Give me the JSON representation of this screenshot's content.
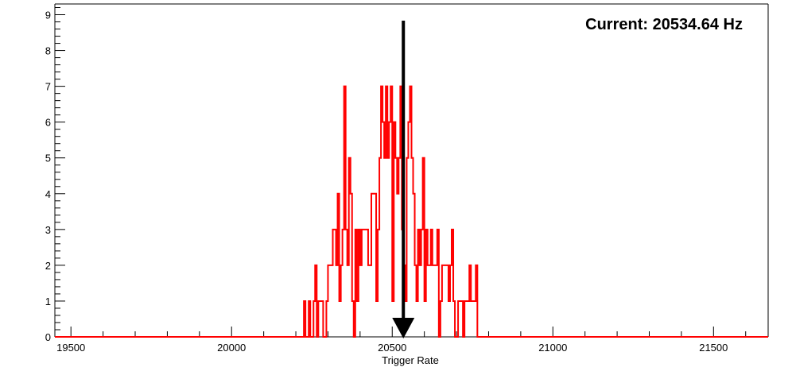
{
  "chart_data": {
    "type": "histogram",
    "title": "",
    "annotation": {
      "label": "Current: 20534.64 Hz",
      "marker_x": 20534.64
    },
    "xlabel": "Trigger Rate",
    "ylabel": "",
    "xlim": [
      19450,
      21670
    ],
    "ylim": [
      0,
      9.3
    ],
    "x_ticks": [
      19500,
      20000,
      20500,
      21000,
      21500
    ],
    "y_ticks": [
      0,
      1,
      2,
      3,
      4,
      5,
      6,
      7,
      8,
      9
    ],
    "grid": false,
    "line_color": "#ff0000",
    "arrow_color": "#000000",
    "bin_width": 5,
    "bins_start": 20225,
    "counts": [
      1,
      0,
      0,
      1,
      0,
      0,
      1,
      2,
      0,
      1,
      1,
      1,
      0,
      0,
      1,
      2,
      2,
      2,
      3,
      3,
      2,
      4,
      1,
      2,
      3,
      7,
      3,
      2,
      5,
      4,
      1,
      0,
      3,
      1,
      3,
      2,
      3,
      3,
      3,
      3,
      2,
      2,
      4,
      4,
      4,
      1,
      3,
      5,
      7,
      6,
      5,
      7,
      5,
      6,
      7,
      1,
      6,
      5,
      4,
      5,
      7,
      3,
      2,
      1,
      5,
      6,
      7,
      5,
      4,
      2,
      1,
      3,
      2,
      3,
      5,
      1,
      3,
      2,
      2,
      3,
      2,
      2,
      2,
      3,
      0,
      1,
      2,
      2,
      2,
      2,
      1,
      2,
      3,
      1,
      0,
      0,
      1,
      1,
      1,
      0,
      1,
      1,
      1,
      2,
      1,
      1,
      1,
      2,
      0
    ]
  }
}
